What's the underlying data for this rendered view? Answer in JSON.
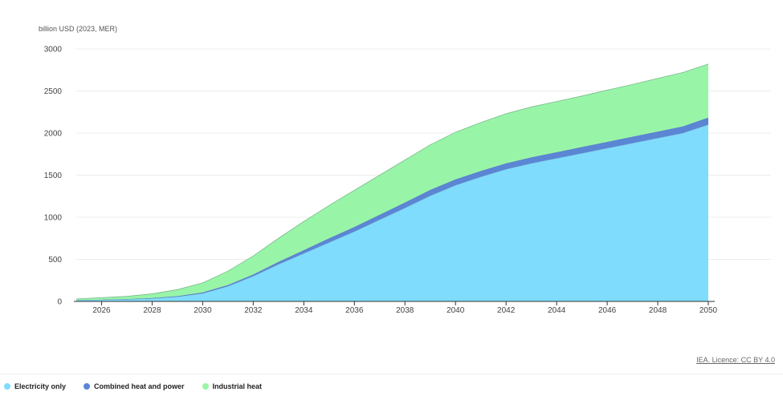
{
  "chart_data": {
    "type": "area",
    "stacked": true,
    "ylabel": "billion USD (2023, MER)",
    "xlabel": "",
    "title": "",
    "x": [
      2025,
      2026,
      2027,
      2028,
      2029,
      2030,
      2031,
      2032,
      2033,
      2034,
      2035,
      2036,
      2037,
      2038,
      2039,
      2040,
      2041,
      2042,
      2043,
      2044,
      2045,
      2046,
      2047,
      2048,
      2049,
      2050
    ],
    "xlim": [
      2025,
      2050
    ],
    "ylim": [
      0,
      3000
    ],
    "x_ticks": [
      "2026",
      "2028",
      "2030",
      "2032",
      "2034",
      "2036",
      "2038",
      "2040",
      "2042",
      "2044",
      "2046",
      "2048",
      "2050"
    ],
    "y_ticks": [
      "0",
      "500",
      "1000",
      "1500",
      "2000",
      "2500",
      "3000"
    ],
    "grid": true,
    "legend_position": "bottom-left",
    "series": [
      {
        "name": "Electricity only",
        "color": "#7fdcfc",
        "values": [
          15,
          20,
          25,
          35,
          55,
          95,
          180,
          300,
          440,
          570,
          700,
          830,
          970,
          1110,
          1255,
          1380,
          1480,
          1570,
          1640,
          1700,
          1760,
          1820,
          1880,
          1940,
          2000,
          2100
        ]
      },
      {
        "name": "Combined heat and power",
        "color": "#5b86d4",
        "values": [
          2,
          2,
          3,
          5,
          8,
          12,
          15,
          20,
          30,
          40,
          50,
          55,
          60,
          65,
          70,
          70,
          70,
          70,
          72,
          73,
          75,
          75,
          77,
          78,
          80,
          85
        ]
      },
      {
        "name": "Industrial heat",
        "color": "#98f5a8",
        "values": [
          13,
          23,
          32,
          50,
          77,
          113,
          165,
          220,
          280,
          340,
          390,
          435,
          470,
          505,
          535,
          560,
          575,
          590,
          598,
          602,
          605,
          615,
          620,
          632,
          640,
          635
        ]
      }
    ]
  },
  "licence_text": "IEA. Licence: CC BY 4.0"
}
